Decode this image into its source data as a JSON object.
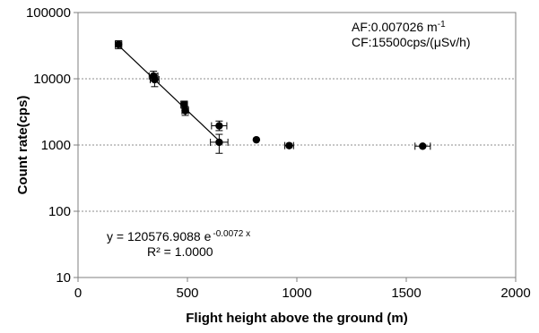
{
  "chart_data": {
    "type": "scatter",
    "xlabel": "Flight height above the ground (m)",
    "ylabel": "Count rate(cps)",
    "xlim": [
      0,
      2000
    ],
    "ylim": [
      10,
      100000
    ],
    "y_scale": "log",
    "x_ticks": [
      "0",
      "500",
      "1000",
      "1500",
      "2000"
    ],
    "y_ticks": [
      "10",
      "100",
      "1000",
      "10000",
      "100000"
    ],
    "grid": "horizontal dotted",
    "series": [
      {
        "marker": "filled circle",
        "color": "#000000",
        "points": [
          {
            "x": 185,
            "y": 33000,
            "xerr": 15,
            "yerr_lo": 28500,
            "yerr_hi": 37500
          },
          {
            "x": 345,
            "y": 11000,
            "xerr": 20,
            "yerr_lo": 9200,
            "yerr_hi": 13000
          },
          {
            "x": 350,
            "y": 9700,
            "xerr": 20,
            "yerr_lo": 7600,
            "yerr_hi": 12000
          },
          {
            "x": 485,
            "y": 4100,
            "xerr": 15,
            "yerr_lo": 3600,
            "yerr_hi": 4600
          },
          {
            "x": 490,
            "y": 3300,
            "xerr": 15,
            "yerr_lo": 2800,
            "yerr_hi": 3800
          },
          {
            "x": 645,
            "y": 1950,
            "xerr": 35,
            "yerr_lo": 1650,
            "yerr_hi": 2300
          },
          {
            "x": 645,
            "y": 1100,
            "xerr": 40,
            "yerr_lo": 750,
            "yerr_hi": 1450
          },
          {
            "x": 815,
            "y": 1200
          },
          {
            "x": 965,
            "y": 980,
            "xerr": 20
          },
          {
            "x": 1575,
            "y": 960,
            "xerr": 35
          }
        ]
      }
    ],
    "fit": {
      "type": "exponential",
      "a": 120576.9088,
      "b": -0.0072,
      "x_range": [
        180,
        660
      ],
      "style": "black solid"
    },
    "annotations": {
      "equation_prefix": "y = 120576.9088 e",
      "equation_exp": "-0.0072 x",
      "r2": "R² = 1.0000",
      "af_text": "AF:0.007026 m",
      "af_sup": "-1",
      "cf_text": "CF:15500cps/(μSv/h)"
    }
  }
}
